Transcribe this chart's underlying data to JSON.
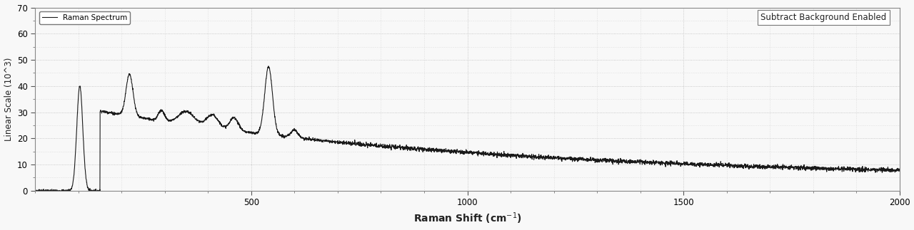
{
  "xlim": [
    0,
    2000
  ],
  "ylim": [
    0,
    70
  ],
  "yticks": [
    0,
    10,
    20,
    30,
    40,
    50,
    60,
    70
  ],
  "xticks": [
    500,
    1000,
    1500,
    2000
  ],
  "line_color": "#1a1a1a",
  "line_width": 0.8,
  "legend_label": "Raman Spectrum",
  "annotation_text": "Subtract Background Enabled",
  "background_color": "#f8f8f8",
  "grid_color": "#bbbbbb",
  "ylabel": "Linear Scale (10^3)",
  "xlabel": "Raman Shift (cm$^{-1}$)"
}
